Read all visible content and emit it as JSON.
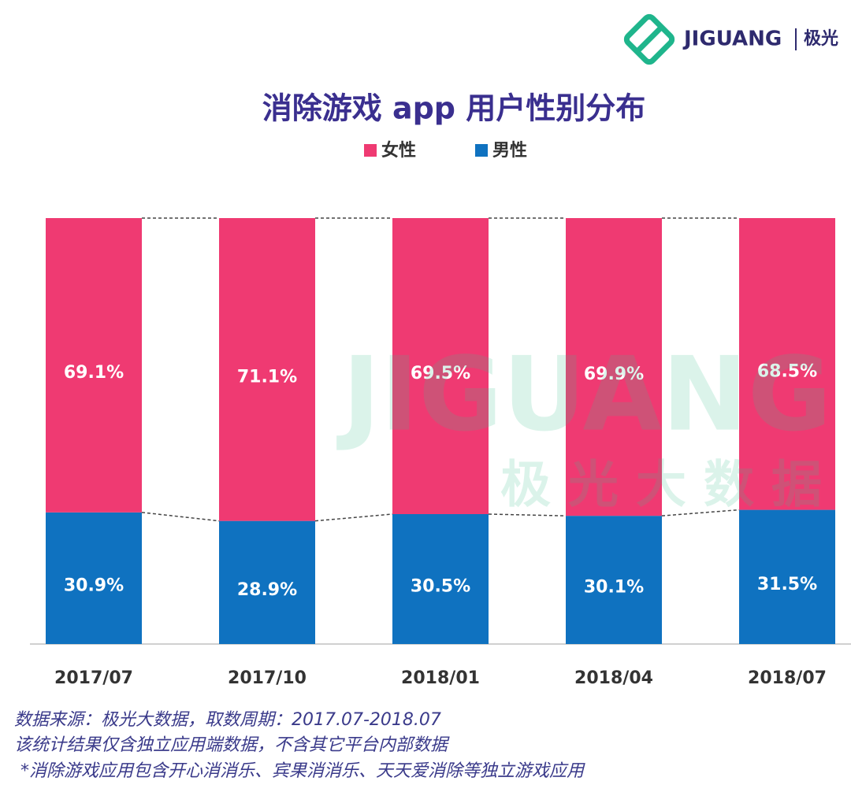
{
  "logo": {
    "brand": "JIGUANG",
    "name": "极光"
  },
  "watermark": {
    "brand": "JIGUANG",
    "name": "极光大数据"
  },
  "chart_data": {
    "type": "stacked-bar",
    "title": "消除游戏 app 用户性别分布",
    "categories": [
      "2017/07",
      "2017/10",
      "2018/01",
      "2018/04",
      "2018/07"
    ],
    "series": [
      {
        "name": "女性",
        "color": "#ef3a72",
        "values": [
          69.1,
          71.1,
          69.5,
          69.9,
          68.5
        ],
        "value_labels": [
          "69.1%",
          "71.1%",
          "69.5%",
          "69.9%",
          "68.5%"
        ]
      },
      {
        "name": "男性",
        "color": "#0f72c0",
        "values": [
          30.9,
          28.9,
          30.5,
          30.1,
          31.5
        ],
        "value_labels": [
          "30.9%",
          "28.9%",
          "30.5%",
          "30.1%",
          "31.5%"
        ]
      }
    ],
    "ylim": [
      0,
      100
    ]
  },
  "notes": [
    "数据来源：极光大数据，取数周期：2017.07-2018.07",
    "该统计结果仅含独立应用端数据，不含其它平台内部数据",
    "*消除游戏应用包含开心消消乐、宾果消消乐、天天爱消除等独立游戏应用"
  ]
}
